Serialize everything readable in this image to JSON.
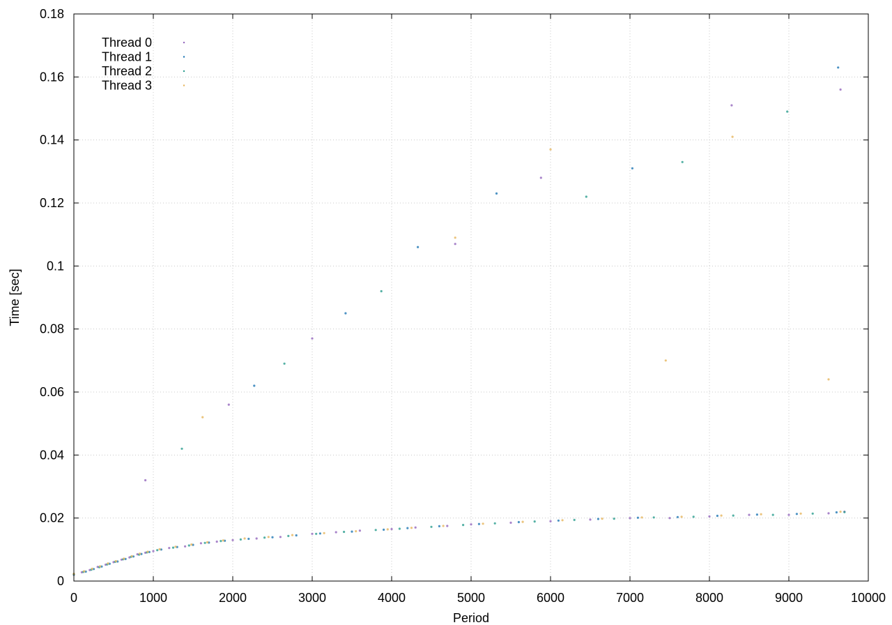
{
  "chart_data": {
    "type": "scatter",
    "title": "",
    "xlabel": "Period",
    "ylabel": "Time [sec]",
    "xlim": [
      0,
      10000
    ],
    "ylim": [
      0,
      0.18
    ],
    "x_ticks": [
      0,
      1000,
      2000,
      3000,
      4000,
      5000,
      6000,
      7000,
      8000,
      9000,
      10000
    ],
    "y_ticks": [
      0,
      0.02,
      0.04,
      0.06,
      0.08,
      0.1,
      0.12,
      0.14,
      0.16,
      0.18
    ],
    "x_tick_labels": [
      "0",
      "1000",
      "2000",
      "3000",
      "4000",
      "5000",
      "6000",
      "7000",
      "8000",
      "9000",
      "10000"
    ],
    "y_tick_labels": [
      "0",
      "0.02",
      "0.04",
      "0.06",
      "0.08",
      "0.1",
      "0.12",
      "0.14",
      "0.16",
      "0.18"
    ],
    "grid": true,
    "legend_position": "top-left",
    "series": [
      {
        "name": "Thread 0",
        "color": "#9467bd",
        "points": [
          [
            0,
            0.002
          ],
          [
            100,
            0.0028
          ],
          [
            200,
            0.0035
          ],
          [
            300,
            0.0045
          ],
          [
            400,
            0.0052
          ],
          [
            500,
            0.006
          ],
          [
            600,
            0.0068
          ],
          [
            700,
            0.0075
          ],
          [
            800,
            0.0085
          ],
          [
            900,
            0.009
          ],
          [
            1000,
            0.0095
          ],
          [
            1200,
            0.0105
          ],
          [
            1400,
            0.011
          ],
          [
            1600,
            0.012
          ],
          [
            1800,
            0.0125
          ],
          [
            2000,
            0.013
          ],
          [
            2300,
            0.0135
          ],
          [
            2600,
            0.014
          ],
          [
            3000,
            0.015
          ],
          [
            3300,
            0.0155
          ],
          [
            3600,
            0.016
          ],
          [
            4000,
            0.0165
          ],
          [
            4300,
            0.017
          ],
          [
            4700,
            0.0175
          ],
          [
            5000,
            0.018
          ],
          [
            5500,
            0.0185
          ],
          [
            6000,
            0.019
          ],
          [
            6500,
            0.0195
          ],
          [
            7000,
            0.02
          ],
          [
            7500,
            0.02
          ],
          [
            8000,
            0.0205
          ],
          [
            8500,
            0.021
          ],
          [
            9000,
            0.021
          ],
          [
            9500,
            0.0215
          ],
          [
            9700,
            0.022
          ],
          [
            900,
            0.032
          ],
          [
            1950,
            0.056
          ],
          [
            3000,
            0.077
          ],
          [
            4800,
            0.107
          ],
          [
            5880,
            0.128
          ],
          [
            9650,
            0.156
          ],
          [
            8280,
            0.151
          ]
        ]
      },
      {
        "name": "Thread 1",
        "color": "#1f77b4",
        "points": [
          [
            0,
            0.0022
          ],
          [
            150,
            0.003
          ],
          [
            250,
            0.0038
          ],
          [
            350,
            0.0046
          ],
          [
            450,
            0.0055
          ],
          [
            550,
            0.0062
          ],
          [
            650,
            0.007
          ],
          [
            750,
            0.0078
          ],
          [
            850,
            0.0086
          ],
          [
            950,
            0.0092
          ],
          [
            1100,
            0.01
          ],
          [
            1300,
            0.0108
          ],
          [
            1500,
            0.0115
          ],
          [
            1700,
            0.0122
          ],
          [
            1900,
            0.0128
          ],
          [
            2200,
            0.0134
          ],
          [
            2500,
            0.0139
          ],
          [
            2800,
            0.0145
          ],
          [
            3100,
            0.0151
          ],
          [
            3500,
            0.0157
          ],
          [
            3900,
            0.0163
          ],
          [
            4200,
            0.0168
          ],
          [
            4600,
            0.0174
          ],
          [
            5100,
            0.0181
          ],
          [
            5600,
            0.0187
          ],
          [
            6100,
            0.0192
          ],
          [
            6600,
            0.0197
          ],
          [
            7100,
            0.0201
          ],
          [
            7600,
            0.0203
          ],
          [
            8100,
            0.0207
          ],
          [
            8600,
            0.0211
          ],
          [
            9100,
            0.0213
          ],
          [
            9600,
            0.0218
          ],
          [
            2270,
            0.062
          ],
          [
            3420,
            0.085
          ],
          [
            4330,
            0.106
          ],
          [
            5320,
            0.123
          ],
          [
            7030,
            0.131
          ],
          [
            9620,
            0.163
          ]
        ]
      },
      {
        "name": "Thread 2",
        "color": "#2a9d8f",
        "points": [
          [
            0,
            0.0021
          ],
          [
            120,
            0.0029
          ],
          [
            220,
            0.0036
          ],
          [
            320,
            0.0044
          ],
          [
            420,
            0.0053
          ],
          [
            520,
            0.0061
          ],
          [
            620,
            0.0069
          ],
          [
            720,
            0.0077
          ],
          [
            820,
            0.0084
          ],
          [
            920,
            0.0091
          ],
          [
            1050,
            0.0098
          ],
          [
            1250,
            0.0106
          ],
          [
            1450,
            0.0113
          ],
          [
            1650,
            0.0121
          ],
          [
            1850,
            0.0127
          ],
          [
            2100,
            0.0132
          ],
          [
            2400,
            0.0138
          ],
          [
            2700,
            0.0143
          ],
          [
            3050,
            0.015
          ],
          [
            3400,
            0.0156
          ],
          [
            3800,
            0.0162
          ],
          [
            4100,
            0.0166
          ],
          [
            4500,
            0.0172
          ],
          [
            4900,
            0.0178
          ],
          [
            5300,
            0.0183
          ],
          [
            5800,
            0.0189
          ],
          [
            6300,
            0.0194
          ],
          [
            6800,
            0.0198
          ],
          [
            7300,
            0.0202
          ],
          [
            7800,
            0.0204
          ],
          [
            8300,
            0.0208
          ],
          [
            8800,
            0.021
          ],
          [
            9300,
            0.0214
          ],
          [
            9700,
            0.0219
          ],
          [
            1360,
            0.042
          ],
          [
            2650,
            0.069
          ],
          [
            3870,
            0.092
          ],
          [
            6450,
            0.122
          ],
          [
            7660,
            0.133
          ],
          [
            8980,
            0.149
          ]
        ]
      },
      {
        "name": "Thread 3",
        "color": "#e6b55c",
        "points": [
          [
            0,
            0.0023
          ],
          [
            130,
            0.0031
          ],
          [
            230,
            0.0039
          ],
          [
            330,
            0.0047
          ],
          [
            430,
            0.0056
          ],
          [
            530,
            0.0063
          ],
          [
            630,
            0.0071
          ],
          [
            730,
            0.0079
          ],
          [
            830,
            0.0087
          ],
          [
            930,
            0.0093
          ],
          [
            1080,
            0.0101
          ],
          [
            1280,
            0.0109
          ],
          [
            1480,
            0.0116
          ],
          [
            1680,
            0.0123
          ],
          [
            1880,
            0.0129
          ],
          [
            2150,
            0.0135
          ],
          [
            2450,
            0.014
          ],
          [
            2750,
            0.0146
          ],
          [
            3150,
            0.0152
          ],
          [
            3550,
            0.0158
          ],
          [
            3950,
            0.0164
          ],
          [
            4250,
            0.0169
          ],
          [
            4650,
            0.0175
          ],
          [
            5150,
            0.0182
          ],
          [
            5650,
            0.0188
          ],
          [
            6150,
            0.0193
          ],
          [
            6650,
            0.0198
          ],
          [
            7150,
            0.0202
          ],
          [
            7650,
            0.0204
          ],
          [
            8150,
            0.0208
          ],
          [
            8650,
            0.0212
          ],
          [
            9150,
            0.0214
          ],
          [
            9650,
            0.022
          ],
          [
            1620,
            0.052
          ],
          [
            7450,
            0.07
          ],
          [
            9500,
            0.064
          ],
          [
            4800,
            0.109
          ],
          [
            6000,
            0.137
          ],
          [
            8290,
            0.141
          ]
        ]
      }
    ]
  },
  "legend": {
    "items": [
      {
        "label": "Thread 0",
        "color": "#9467bd"
      },
      {
        "label": "Thread 1",
        "color": "#1f77b4"
      },
      {
        "label": "Thread 2",
        "color": "#2a9d8f"
      },
      {
        "label": "Thread 3",
        "color": "#e6b55c"
      }
    ]
  }
}
